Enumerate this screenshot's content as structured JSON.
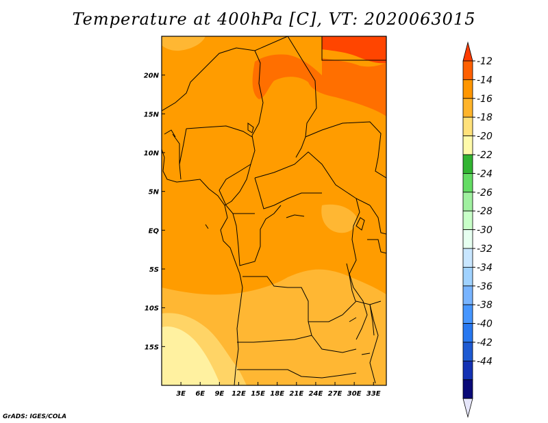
{
  "title": "Temperature at 400hPa [C], VT: 2020063015",
  "credit": "GrADS: IGES/COLA",
  "map": {
    "region": "Central Africa",
    "lon_range": [
      0,
      35
    ],
    "lat_range": [
      -20,
      25
    ],
    "x_ticks": [
      {
        "value": 3,
        "label": "3E"
      },
      {
        "value": 6,
        "label": "6E"
      },
      {
        "value": 9,
        "label": "9E"
      },
      {
        "value": 12,
        "label": "12E"
      },
      {
        "value": 15,
        "label": "15E"
      },
      {
        "value": 18,
        "label": "18E"
      },
      {
        "value": 21,
        "label": "21E"
      },
      {
        "value": 24,
        "label": "24E"
      },
      {
        "value": 27,
        "label": "27E"
      },
      {
        "value": 30,
        "label": "30E"
      },
      {
        "value": 33,
        "label": "33E"
      }
    ],
    "y_ticks": [
      {
        "value": 20,
        "label": "20N"
      },
      {
        "value": 15,
        "label": "15N"
      },
      {
        "value": 10,
        "label": "10N"
      },
      {
        "value": 5,
        "label": "5N"
      },
      {
        "value": 0,
        "label": "EQ"
      },
      {
        "value": -5,
        "label": "5S"
      },
      {
        "value": -10,
        "label": "10S"
      },
      {
        "value": -15,
        "label": "15S"
      }
    ]
  },
  "colorbar": {
    "top_arrow_color": "#ff3c00",
    "bottom_arrow_color": "#e6e6fa",
    "bins": [
      {
        "color": "#ff6000"
      },
      {
        "color": "#ff9600"
      },
      {
        "color": "#ffb42a"
      },
      {
        "color": "#ffe17a"
      },
      {
        "color": "#fffaaa"
      },
      {
        "color": "#32b432"
      },
      {
        "color": "#64dc64"
      },
      {
        "color": "#a0f0a0"
      },
      {
        "color": "#c8ffc8"
      },
      {
        "color": "#e6fff0"
      },
      {
        "color": "#c8e6ff"
      },
      {
        "color": "#a0d2ff"
      },
      {
        "color": "#78b4ff"
      },
      {
        "color": "#4696ff"
      },
      {
        "color": "#2878f0"
      },
      {
        "color": "#1e5ad2"
      },
      {
        "color": "#1432b4"
      },
      {
        "color": "#0a0a78"
      }
    ],
    "labels": [
      "-12",
      "-14",
      "-16",
      "-18",
      "-20",
      "-22",
      "-24",
      "-26",
      "-28",
      "-30",
      "-32",
      "-34",
      "-36",
      "-38",
      "-40",
      "-42",
      "-44"
    ]
  },
  "colors": {
    "main": "#ff9c00",
    "warm": "#ff6f00",
    "hot": "#ff4500",
    "cool": "#ffb733",
    "cooler": "#ffd466",
    "coolest": "#fff1a0"
  }
}
